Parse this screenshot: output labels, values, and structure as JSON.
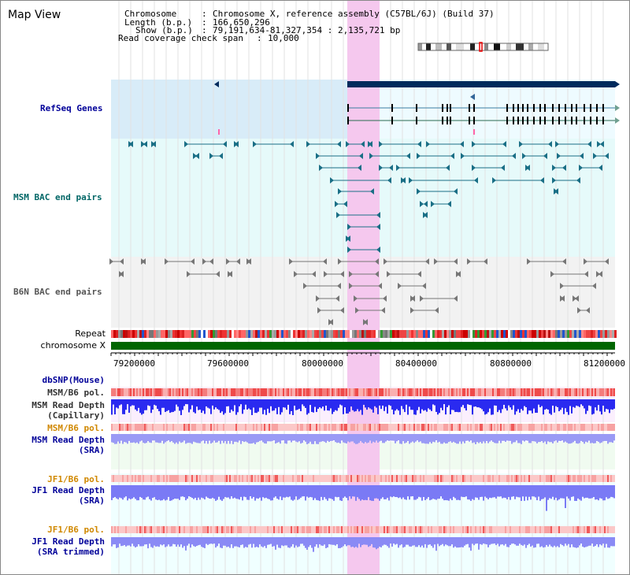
{
  "title": "Map View",
  "header": {
    "chromosome_label": "Chromosome",
    "chromosome_value": "Chromosome X, reference assembly (C57BL/6J) (Build 37)",
    "length_label": "Length (b.p.)",
    "length_value": "166,650,296",
    "show_label": "Show (b.p.)",
    "show_value": "79,191,634-81,327,354 : 2,135,721 bp",
    "span_label": "Read coverage check span",
    "span_value": "10,000"
  },
  "tracks": {
    "refseq": "RefSeq Genes",
    "msm_bac": "MSM BAC end pairs",
    "b6n_bac": "B6N BAC end pairs",
    "repeat": "Repeat",
    "chromosome": "chromosome X",
    "dbsnp": "dbSNP(Mouse)",
    "msm_b6_pol": "MSM/B6 pol.",
    "msm_depth_cap_1": "MSM Read Depth",
    "msm_depth_cap_2": "(Capillary)",
    "msm_b6_pol2": "MSM/B6 pol.",
    "msm_depth_sra_1": "MSM Read Depth",
    "msm_depth_sra_2": "(SRA)",
    "jf1_b6_pol": "JF1/B6 pol.",
    "jf1_depth_sra_1": "JF1 Read Depth",
    "jf1_depth_sra_2": "(SRA)",
    "jf1_b6_pol2": "JF1/B6 pol.",
    "jf1_depth_trim_1": "JF1 Read Depth",
    "jf1_depth_trim_2": "(SRA trimmed)"
  },
  "axis_ticks": [
    "79200000",
    "79600000",
    "80000000",
    "80400000",
    "80800000",
    "81200000"
  ],
  "colors": {
    "track_label_blue": "#000099",
    "track_label_teal": "#006666",
    "track_label_orange": "#d08800",
    "highlight": "#f5c8ee",
    "refseq_bg": "#d8ecf8",
    "msm_bg": "#e6fafa",
    "b6n_bg": "#f2f2f2",
    "chromosome_bar": "#006600"
  }
}
